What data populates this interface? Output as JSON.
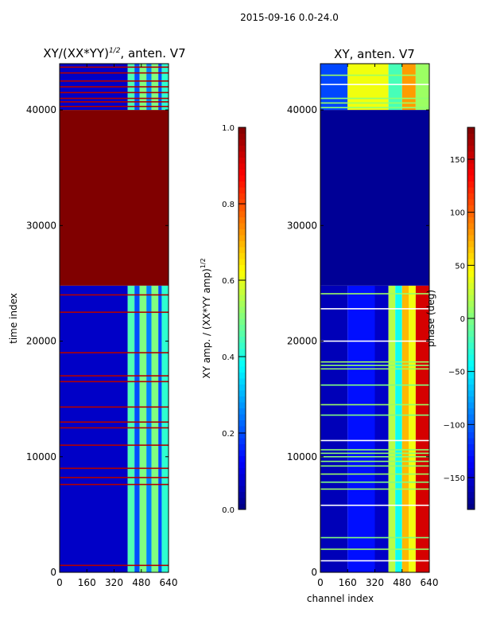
{
  "suptitle": "2015-09-16 0.0-24.0",
  "chart_data": [
    {
      "type": "heatmap",
      "title": "XY/(XX*YY)",
      "title_sup": "1/2",
      "title_suffix": ", anten. V7",
      "xlabel": "",
      "ylabel": "time index",
      "xlim": [
        0,
        640
      ],
      "ylim": [
        0,
        44000
      ],
      "xticks": [
        0,
        160,
        320,
        480,
        640
      ],
      "yticks": [
        0,
        10000,
        20000,
        30000,
        40000
      ],
      "colormap": "jet",
      "clim": [
        0.0,
        1.0
      ],
      "colorbar": {
        "label": "XY amp. / (XX*YY amp)",
        "label_sup": "1/2",
        "ticks": [
          "0.0",
          "0.2",
          "0.4",
          "0.6",
          "0.8",
          "1.0"
        ],
        "tick_values": [
          0.0,
          0.2,
          0.4,
          0.6,
          0.8,
          1.0
        ]
      },
      "bands": [
        {
          "t": [
            0,
            24800
          ],
          "segments": [
            [
              0,
              400,
              0.07
            ],
            [
              400,
              440,
              0.45
            ],
            [
              440,
              470,
              0.2
            ],
            [
              470,
              510,
              0.5
            ],
            [
              510,
              540,
              0.25
            ],
            [
              540,
              580,
              0.5
            ],
            [
              580,
              600,
              0.2
            ],
            [
              600,
              640,
              0.42
            ]
          ]
        },
        {
          "t": [
            24800,
            40000
          ],
          "segments": [
            [
              0,
              640,
              1.0
            ]
          ]
        },
        {
          "t": [
            40000,
            44000
          ],
          "segments": [
            [
              0,
              400,
              0.07
            ],
            [
              400,
              440,
              0.45
            ],
            [
              440,
              470,
              0.2
            ],
            [
              470,
              510,
              0.5
            ],
            [
              510,
              540,
              0.25
            ],
            [
              540,
              580,
              0.5
            ],
            [
              580,
              600,
              0.2
            ],
            [
              600,
              640,
              0.42
            ]
          ]
        }
      ],
      "lines": [
        {
          "t": 600,
          "v": 0.95
        },
        {
          "t": 7600,
          "v": 0.95
        },
        {
          "t": 8200,
          "v": 0.95
        },
        {
          "t": 9000,
          "v": 0.95
        },
        {
          "t": 11000,
          "v": 0.95
        },
        {
          "t": 12500,
          "v": 0.95
        },
        {
          "t": 13000,
          "v": 0.95
        },
        {
          "t": 14300,
          "v": 0.95
        },
        {
          "t": 16500,
          "v": 0.95
        },
        {
          "t": 17000,
          "v": 0.95
        },
        {
          "t": 19000,
          "v": 0.95
        },
        {
          "t": 22500,
          "v": 0.95
        },
        {
          "t": 24000,
          "v": 0.95
        },
        {
          "t": 40300,
          "v": 0.95
        },
        {
          "t": 40700,
          "v": 0.95
        },
        {
          "t": 41000,
          "v": 0.95
        },
        {
          "t": 41500,
          "v": 0.95
        },
        {
          "t": 42000,
          "v": 0.95
        },
        {
          "t": 42500,
          "v": 0.95
        },
        {
          "t": 43200,
          "v": 0.95
        },
        {
          "t": 43700,
          "v": 0.95
        }
      ]
    },
    {
      "type": "heatmap",
      "title": "XY, anten. V7",
      "xlabel": "channel index",
      "ylabel": "",
      "xlim": [
        0,
        640
      ],
      "ylim": [
        0,
        44000
      ],
      "xticks": [
        0,
        160,
        320,
        480,
        640
      ],
      "yticks": [
        0,
        10000,
        20000,
        30000,
        40000
      ],
      "colormap": "jet",
      "clim": [
        -180,
        180
      ],
      "colorbar": {
        "label": "phase (deg)",
        "ticks": [
          "−150",
          "−100",
          "−50",
          "0",
          "50",
          "100",
          "150"
        ],
        "tick_values": [
          -150,
          -100,
          -50,
          0,
          50,
          100,
          150
        ]
      },
      "bands": [
        {
          "t": [
            0,
            24800
          ],
          "segments": [
            [
              0,
              160,
              -160
            ],
            [
              160,
              320,
              -130
            ],
            [
              320,
              400,
              -155
            ],
            [
              400,
              440,
              20
            ],
            [
              440,
              480,
              -40
            ],
            [
              480,
              520,
              70
            ],
            [
              520,
              560,
              40
            ],
            [
              560,
              640,
              150
            ]
          ]
        },
        {
          "t": [
            24800,
            40000
          ],
          "segments": [
            [
              0,
              640,
              -172
            ]
          ]
        },
        {
          "t": [
            40000,
            44000
          ],
          "segments": [
            [
              0,
              160,
              -110
            ],
            [
              160,
              400,
              40
            ],
            [
              400,
              480,
              -20
            ],
            [
              480,
              560,
              80
            ],
            [
              560,
              640,
              10
            ]
          ]
        }
      ],
      "lines": [
        {
          "t": 1000,
          "v": "white"
        },
        {
          "t": 2000,
          "v": 10
        },
        {
          "t": 3000,
          "v": 0
        },
        {
          "t": 5800,
          "v": "white"
        },
        {
          "t": 7200,
          "v": 10
        },
        {
          "t": 7800,
          "v": 0
        },
        {
          "t": 8500,
          "v": 10
        },
        {
          "t": 9200,
          "v": 5
        },
        {
          "t": 9600,
          "v": 5
        },
        {
          "t": 10000,
          "v": 5
        },
        {
          "t": 10300,
          "v": 5
        },
        {
          "t": 10600,
          "v": 5
        },
        {
          "t": 11400,
          "v": "white"
        },
        {
          "t": 13600,
          "v": 0
        },
        {
          "t": 14500,
          "v": 10
        },
        {
          "t": 16200,
          "v": 0
        },
        {
          "t": 17600,
          "v": 10
        },
        {
          "t": 17900,
          "v": 5
        },
        {
          "t": 18200,
          "v": 10
        },
        {
          "t": 20000,
          "v": "white"
        },
        {
          "t": 22800,
          "v": "white"
        },
        {
          "t": 24100,
          "v": 10
        },
        {
          "t": 40200,
          "v": 5
        },
        {
          "t": 40600,
          "v": 10
        },
        {
          "t": 41000,
          "v": 5
        },
        {
          "t": 42200,
          "v": "white"
        },
        {
          "t": 43000,
          "v": 10
        }
      ]
    }
  ]
}
